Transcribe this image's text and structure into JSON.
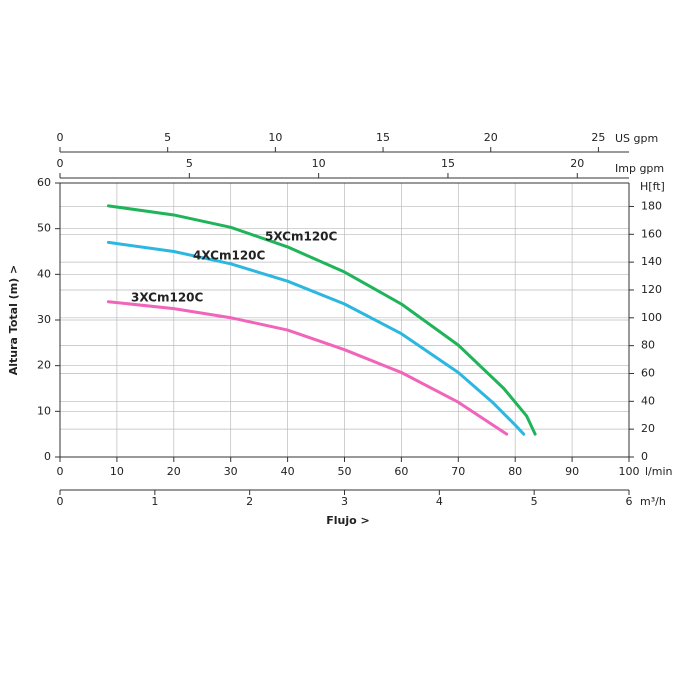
{
  "chart_data": {
    "type": "line",
    "xlabel": "Flujo >",
    "ylabel": "Altura Total (m) >",
    "x_unit": "l/min",
    "xlim": [
      0,
      100
    ],
    "xticks": [
      0,
      10,
      20,
      30,
      40,
      50,
      60,
      70,
      80,
      90,
      100
    ],
    "ylim": [
      0,
      60
    ],
    "yticks": [
      0,
      10,
      20,
      30,
      40,
      50,
      60
    ],
    "y2_unit": "H[ft]",
    "y2lim": [
      0,
      196.85
    ],
    "y2ticks": [
      0,
      20,
      40,
      60,
      80,
      100,
      120,
      140,
      160,
      180
    ],
    "top_axes": [
      {
        "unit": "US gpm",
        "xlim": [
          0,
          26.42
        ],
        "xticks": [
          0,
          5,
          10,
          15,
          20,
          25
        ]
      },
      {
        "unit": "Imp gpm",
        "xlim": [
          0,
          22
        ],
        "xticks": [
          0,
          5,
          10,
          15,
          20
        ]
      }
    ],
    "bottom_axis2": {
      "unit": "m³/h",
      "xlim": [
        0,
        6
      ],
      "xticks": [
        0,
        1,
        2,
        3,
        4,
        5,
        6
      ]
    },
    "grid": true,
    "series": [
      {
        "name": "5XCm120C",
        "color": "#20b45a",
        "x": [
          8.5,
          20,
          30,
          40,
          50,
          60,
          70,
          78,
          82,
          83.5
        ],
        "values": [
          55,
          53,
          50.3,
          46,
          40.5,
          33.5,
          24.5,
          15,
          9,
          5
        ]
      },
      {
        "name": "4XCm120C",
        "color": "#2bb7e0",
        "x": [
          8.5,
          20,
          30,
          40,
          50,
          60,
          70,
          76,
          80,
          81.5
        ],
        "values": [
          47,
          45,
          42.3,
          38.5,
          33.5,
          27,
          18.5,
          12,
          7,
          5
        ]
      },
      {
        "name": "3XCm120C",
        "color": "#f064b9",
        "x": [
          8.5,
          20,
          30,
          40,
          50,
          60,
          70,
          78.5
        ],
        "values": [
          34,
          32.5,
          30.5,
          27.8,
          23.5,
          18.5,
          12,
          5
        ]
      }
    ]
  }
}
